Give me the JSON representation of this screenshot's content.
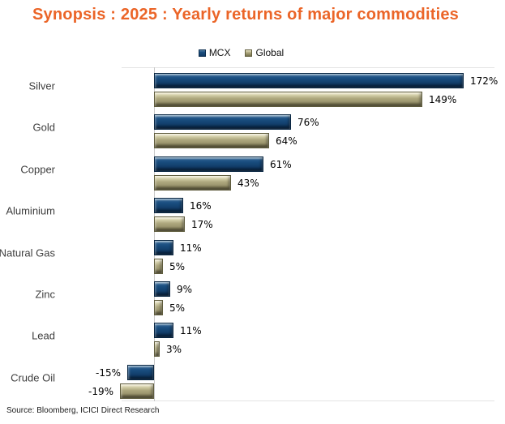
{
  "title": "Synopsis : 2025 : Yearly returns of major commodities",
  "source": "Source: Bloomberg, ICICI Direct Research",
  "colors": {
    "title_orange": "#EB6528",
    "mcx_blue": "#17497A",
    "global_khaki": "#ABA57B",
    "axis_grey": "#C7C7C7",
    "value_text": "#000000",
    "category_text": "#3D3D3D"
  },
  "chart_data": {
    "type": "bar",
    "orientation": "horizontal",
    "title": "Synopsis : 2025 : Yearly returns of major commodities",
    "categories": [
      "Silver",
      "Gold",
      "Copper",
      "Aluminium",
      "Natural Gas",
      "Zinc",
      "Lead",
      "Crude Oil"
    ],
    "series": [
      {
        "name": "MCX",
        "color": "#17497A",
        "values": [
          172,
          76,
          61,
          16,
          11,
          9,
          11,
          -15
        ]
      },
      {
        "name": "Global",
        "color": "#ABA57B",
        "values": [
          149,
          64,
          43,
          17,
          5,
          5,
          3,
          -19
        ]
      }
    ],
    "value_suffix": "%",
    "data_labels": {
      "MCX": [
        "172%",
        "76%",
        "61%",
        "16%",
        "11%",
        "9%",
        "11%",
        "-15%"
      ],
      "Global": [
        "149%",
        "64%",
        "43%",
        "17%",
        "5%",
        "5%",
        "3%",
        "-19%"
      ]
    },
    "xlim": [
      -19,
      190
    ],
    "grid": false,
    "legend_position": "top-center",
    "xlabel": "",
    "ylabel": ""
  }
}
